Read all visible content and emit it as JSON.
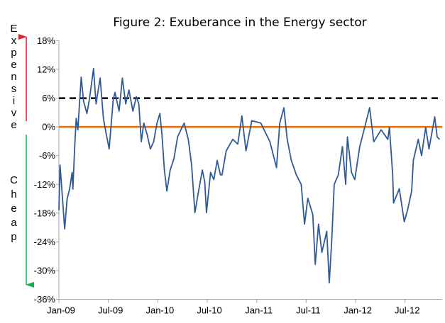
{
  "chart_data": {
    "type": "line",
    "title": "Figure 2: Exuberance in the Energy sector",
    "xlabel": "",
    "ylabel": "",
    "x_unit": "months since Jan-09",
    "xlim": [
      0,
      46.5
    ],
    "ylim": [
      -36,
      18
    ],
    "grid": false,
    "x_ticks": [
      {
        "label": "Jan-09",
        "x": 0
      },
      {
        "label": "Jul-09",
        "x": 6
      },
      {
        "label": "Jan-10",
        "x": 12
      },
      {
        "label": "Jul-10",
        "x": 18
      },
      {
        "label": "Jan-11",
        "x": 24
      },
      {
        "label": "Jul-11",
        "x": 30
      },
      {
        "label": "Jan-12",
        "x": 36
      },
      {
        "label": "Jul-12",
        "x": 42
      }
    ],
    "y_ticks": [
      {
        "label": "18%",
        "y": 18
      },
      {
        "label": "12%",
        "y": 12
      },
      {
        "label": "6%",
        "y": 6
      },
      {
        "label": "0%",
        "y": 0
      },
      {
        "label": "-6%",
        "y": -6
      },
      {
        "label": "-12%",
        "y": -12
      },
      {
        "label": "-18%",
        "y": -18
      },
      {
        "label": "-24%",
        "y": -24
      },
      {
        "label": "-30%",
        "y": -30
      },
      {
        "label": "-36%",
        "y": -36
      }
    ],
    "reference_lines": [
      {
        "name": "threshold",
        "y": 6,
        "color": "#000000",
        "style": "dashed"
      },
      {
        "name": "zero",
        "y": 0,
        "color": "#E46C0A",
        "style": "solid"
      }
    ],
    "series": [
      {
        "name": "Exuberance",
        "color": "#2F5A96",
        "x": [
          0,
          0.14,
          0.4,
          0.7,
          1.0,
          1.3,
          1.6,
          1.7,
          1.9,
          2.1,
          2.3,
          2.7,
          3.0,
          3.4,
          3.7,
          4.2,
          4.5,
          5.0,
          5.4,
          5.7,
          6.1,
          6.6,
          6.8,
          7.3,
          7.7,
          8.1,
          8.5,
          8.97,
          9.4,
          9.7,
          10.0,
          10.3,
          10.7,
          11.1,
          11.5,
          11.9,
          12.25,
          12.5,
          12.8,
          13.1,
          13.5,
          13.96,
          14.4,
          14.8,
          15.2,
          15.7,
          16.1,
          16.5,
          16.95,
          17.4,
          17.7,
          17.9,
          18.4,
          18.8,
          19.2,
          19.6,
          19.8,
          20.3,
          21.1,
          21.7,
          22.2,
          22.7,
          23.4,
          24.5,
          25.6,
          26.4,
          26.8,
          27.3,
          27.7,
          28.2,
          28.8,
          29.4,
          29.8,
          30.2,
          30.8,
          31.1,
          31.5,
          31.9,
          32.5,
          32.8,
          33.1,
          33.4,
          33.9,
          34.4,
          34.8,
          35.0,
          35.5,
          35.9,
          36.5,
          37.1,
          37.7,
          38.2,
          39.1,
          39.9,
          40.1,
          40.5,
          40.6,
          41.3,
          41.9,
          42.3,
          42.8,
          43.0,
          43.6,
          44.0,
          44.5,
          44.9,
          45.6,
          45.9,
          46.2
        ],
        "y": [
          -17.4,
          -8,
          -14,
          -21.3,
          -15,
          -13,
          -9.5,
          -13,
          -4.6,
          1.8,
          -0.6,
          10.4,
          5.3,
          2.8,
          5.8,
          12.2,
          4.8,
          10.2,
          1.8,
          -1.1,
          -4.6,
          5.8,
          7.2,
          3.3,
          10.2,
          4.8,
          7.7,
          3.3,
          6.3,
          4.8,
          -3.1,
          0.8,
          -1.6,
          -4.6,
          -3.1,
          0.8,
          2.8,
          -1.6,
          -9,
          -13.4,
          -9,
          -6.6,
          -2.1,
          -0.6,
          0.8,
          -2.6,
          -8,
          -17.9,
          -13.4,
          -9,
          -11.5,
          -17.9,
          -9.5,
          -11,
          -7,
          -10,
          -10,
          -5,
          -2.6,
          -3.6,
          2.3,
          -5,
          1.3,
          0.8,
          -3.1,
          -8.5,
          0.8,
          4,
          -2.6,
          -7,
          -10,
          -12,
          -20.3,
          -14.9,
          -18.3,
          -28.7,
          -20.3,
          -26.2,
          -21.8,
          -32.6,
          -23.8,
          -12,
          -10,
          -4.1,
          -12,
          -2.1,
          -9.5,
          -11,
          -4.1,
          -0.1,
          4,
          -3.1,
          -0.6,
          -2.6,
          -0.1,
          -10,
          -15.9,
          -12.9,
          -19.8,
          -17.4,
          -13.4,
          -7,
          -2.6,
          -6,
          -0.1,
          -4.6,
          2.1,
          -2.1,
          -2.6
        ]
      }
    ],
    "annotations": [
      {
        "text": "Expensive",
        "direction": "up",
        "color": "#E0202A"
      },
      {
        "text": "Cheap",
        "direction": "down",
        "color": "#10B050"
      }
    ],
    "legend": "none"
  }
}
